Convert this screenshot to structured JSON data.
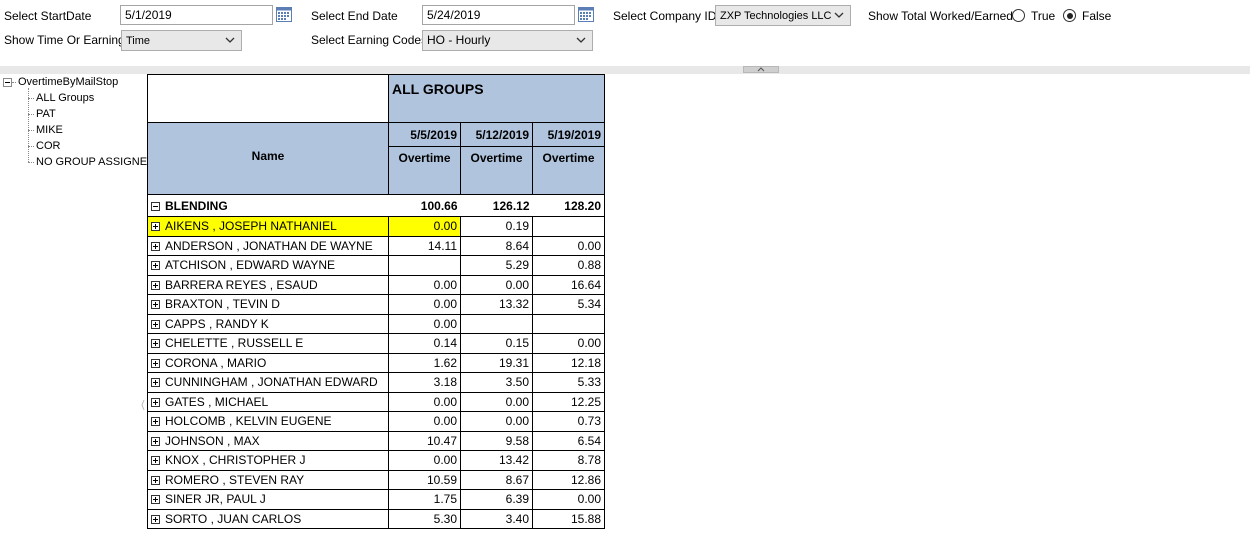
{
  "params": {
    "start_date_label": "Select StartDate",
    "start_date_value": "5/1/2019",
    "end_date_label": "Select End Date",
    "end_date_value": "5/24/2019",
    "company_label": "Select Company ID",
    "company_value": "ZXP Technologies LLC",
    "show_total_label": "Show Total Worked/Earned",
    "true_label": "True",
    "false_label": "False",
    "selected_radio": "False",
    "time_or_earning_label": "Show Time Or Earning",
    "time_or_earning_value": "Time",
    "earning_codes_label": "Select Earning Codes",
    "earning_codes_value": "HO - Hourly"
  },
  "tree": {
    "root": "OvertimeByMailStop",
    "children": [
      "ALL Groups",
      "PAT",
      "MIKE",
      "COR",
      "NO GROUP ASSIGNE"
    ]
  },
  "report": {
    "group_title": "ALL GROUPS",
    "name_header": "Name",
    "dates": [
      "5/5/2019",
      "5/12/2019",
      "5/19/2019"
    ],
    "measure": "Overtime",
    "section": {
      "name": "BLENDING",
      "values": [
        "100.66",
        "126.12",
        "128.20"
      ]
    },
    "rows": [
      {
        "name": "AIKENS , JOSEPH NATHANIEL",
        "values": [
          "0.00",
          "0.19",
          ""
        ]
      },
      {
        "name": "ANDERSON , JONATHAN DE WAYNE",
        "values": [
          "14.11",
          "8.64",
          "0.00"
        ]
      },
      {
        "name": "ATCHISON , EDWARD WAYNE",
        "values": [
          "",
          "5.29",
          "0.88"
        ]
      },
      {
        "name": "BARRERA REYES , ESAUD",
        "values": [
          "0.00",
          "0.00",
          "16.64"
        ]
      },
      {
        "name": "BRAXTON , TEVIN D",
        "values": [
          "0.00",
          "13.32",
          "5.34"
        ]
      },
      {
        "name": "CAPPS , RANDY K",
        "values": [
          "0.00",
          "",
          ""
        ]
      },
      {
        "name": "CHELETTE , RUSSELL E",
        "values": [
          "0.14",
          "0.15",
          "0.00"
        ]
      },
      {
        "name": "CORONA , MARIO",
        "values": [
          "1.62",
          "19.31",
          "12.18"
        ]
      },
      {
        "name": "CUNNINGHAM , JONATHAN EDWARD",
        "values": [
          "3.18",
          "3.50",
          "5.33"
        ]
      },
      {
        "name": "GATES , MICHAEL",
        "values": [
          "0.00",
          "0.00",
          "12.25"
        ]
      },
      {
        "name": "HOLCOMB , KELVIN EUGENE",
        "values": [
          "0.00",
          "0.00",
          "0.73"
        ]
      },
      {
        "name": "JOHNSON , MAX",
        "values": [
          "10.47",
          "9.58",
          "6.54"
        ]
      },
      {
        "name": "KNOX , CHRISTOPHER J",
        "values": [
          "0.00",
          "13.42",
          "8.78"
        ]
      },
      {
        "name": "ROMERO , STEVEN RAY",
        "values": [
          "10.59",
          "8.67",
          "12.86"
        ]
      },
      {
        "name": "SINER JR, PAUL J",
        "values": [
          "1.75",
          "6.39",
          "0.00"
        ]
      },
      {
        "name": "SORTO , JUAN CARLOS",
        "values": [
          "5.30",
          "3.40",
          "15.88"
        ]
      }
    ],
    "highlight_color": "#ffff00",
    "header_color": "#b0c4de"
  }
}
